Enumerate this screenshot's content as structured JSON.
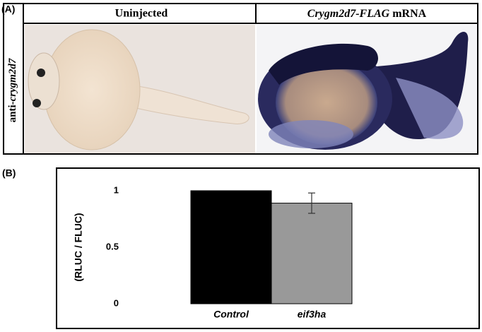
{
  "panel_a": {
    "label": "(A)",
    "columns": [
      {
        "title": "Uninjected"
      },
      {
        "title_italic": "Crygm2d7-FLAG",
        "title_rest": " mRNA"
      }
    ],
    "row_label_prefix": "anti-",
    "row_label_italic": "crygm2d7"
  },
  "chart_data": {
    "type": "bar",
    "panel_label": "(B)",
    "y_label": "(RLUC / FLUC)",
    "categories": [
      "Control",
      "eif3ha"
    ],
    "values": [
      1,
      0.89
    ],
    "errors": [
      null,
      0.09
    ],
    "colors": [
      "#000000",
      "#999999"
    ],
    "ylim": [
      0,
      1.2
    ],
    "yticks": [
      0,
      0.5,
      1
    ]
  }
}
